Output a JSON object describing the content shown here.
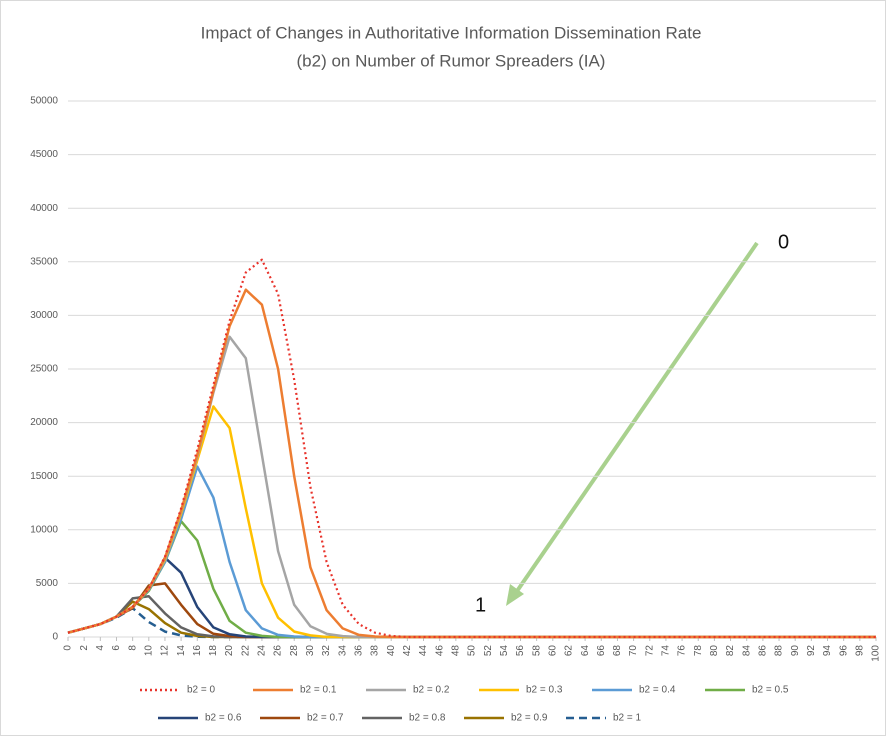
{
  "chart_data": {
    "type": "line",
    "title": [
      "Impact of Changes in Authoritative Information Dissemination Rate",
      "(b2) on Number of Rumor Spreaders (IA)"
    ],
    "x": [
      0,
      2,
      4,
      6,
      8,
      10,
      12,
      14,
      16,
      18,
      20,
      22,
      24,
      26,
      28,
      30,
      32,
      34,
      36,
      38,
      40,
      42,
      44,
      46,
      48,
      50,
      52,
      54,
      56,
      58,
      60,
      62,
      64,
      66,
      68,
      70,
      72,
      74,
      76,
      78,
      80,
      82,
      84,
      86,
      88,
      90,
      92,
      94,
      96,
      98,
      100
    ],
    "xlim": [
      0,
      100
    ],
    "xticks": [
      0,
      2,
      4,
      6,
      8,
      10,
      12,
      14,
      16,
      18,
      20,
      22,
      24,
      26,
      28,
      30,
      32,
      34,
      36,
      38,
      40,
      42,
      44,
      46,
      48,
      50,
      52,
      54,
      56,
      58,
      60,
      62,
      64,
      66,
      68,
      70,
      72,
      74,
      76,
      78,
      80,
      82,
      84,
      86,
      88,
      90,
      92,
      94,
      96,
      98,
      100
    ],
    "ylim": [
      0,
      50000
    ],
    "yticks": [
      0,
      5000,
      10000,
      15000,
      20000,
      25000,
      30000,
      35000,
      40000,
      45000,
      50000
    ],
    "grid": true,
    "legend": "bottom",
    "annotations": [
      "0",
      "1"
    ],
    "series": [
      {
        "name": "b2 = 0",
        "color": "#e8332b",
        "dash": "dotted",
        "values": [
          400,
          800,
          1200,
          1900,
          2800,
          4500,
          7500,
          12000,
          17500,
          23500,
          29500,
          34000,
          35200,
          32000,
          24000,
          14000,
          7000,
          3000,
          1200,
          400,
          100,
          0,
          0,
          0,
          0,
          0,
          0,
          0,
          0,
          0,
          0,
          0,
          0,
          0,
          0,
          0,
          0,
          0,
          0,
          0,
          0,
          0,
          0,
          0,
          0,
          0,
          0,
          0,
          0,
          0,
          0
        ]
      },
      {
        "name": "b2 = 0.1",
        "color": "#ed7d31",
        "dash": "solid",
        "values": [
          400,
          800,
          1200,
          1900,
          2800,
          4500,
          7400,
          11800,
          17000,
          23000,
          29000,
          32400,
          31000,
          25000,
          15000,
          6500,
          2500,
          800,
          200,
          50,
          0,
          0,
          0,
          0,
          0,
          0,
          0,
          0,
          0,
          0,
          0,
          0,
          0,
          0,
          0,
          0,
          0,
          0,
          0,
          0,
          0,
          0,
          0,
          0,
          0,
          0,
          0,
          0,
          0,
          0,
          0
        ]
      },
      {
        "name": "b2 = 0.2",
        "color": "#a5a5a5",
        "dash": "solid",
        "values": [
          400,
          800,
          1200,
          1900,
          2800,
          4500,
          7300,
          11700,
          16800,
          22800,
          28000,
          26000,
          17000,
          8000,
          3000,
          1000,
          300,
          80,
          0,
          0,
          0,
          0,
          0,
          0,
          0,
          0,
          0,
          0,
          0,
          0,
          0,
          0,
          0,
          0,
          0,
          0,
          0,
          0,
          0,
          0,
          0,
          0,
          0,
          0,
          0,
          0,
          0,
          0,
          0,
          0,
          0
        ]
      },
      {
        "name": "b2 = 0.3",
        "color": "#ffc000",
        "dash": "solid",
        "values": [
          400,
          800,
          1200,
          1900,
          2800,
          4500,
          7200,
          11500,
          16500,
          21500,
          19500,
          12000,
          5000,
          1800,
          500,
          150,
          0,
          0,
          0,
          0,
          0,
          0,
          0,
          0,
          0,
          0,
          0,
          0,
          0,
          0,
          0,
          0,
          0,
          0,
          0,
          0,
          0,
          0,
          0,
          0,
          0,
          0,
          0,
          0,
          0,
          0,
          0,
          0,
          0,
          0,
          0
        ]
      },
      {
        "name": "b2 = 0.4",
        "color": "#5b9bd5",
        "dash": "solid",
        "values": [
          400,
          800,
          1200,
          1900,
          2800,
          4400,
          7000,
          11000,
          15900,
          13000,
          7000,
          2500,
          800,
          200,
          50,
          0,
          0,
          0,
          0,
          0,
          0,
          0,
          0,
          0,
          0,
          0,
          0,
          0,
          0,
          0,
          0,
          0,
          0,
          0,
          0,
          0,
          0,
          0,
          0,
          0,
          0,
          0,
          0,
          0,
          0,
          0,
          0,
          0,
          0,
          0,
          0
        ]
      },
      {
        "name": "b2 = 0.5",
        "color": "#70ad47",
        "dash": "solid",
        "values": [
          400,
          800,
          1200,
          1900,
          2800,
          4300,
          7000,
          10800,
          9000,
          4500,
          1500,
          400,
          100,
          0,
          0,
          0,
          0,
          0,
          0,
          0,
          0,
          0,
          0,
          0,
          0,
          0,
          0,
          0,
          0,
          0,
          0,
          0,
          0,
          0,
          0,
          0,
          0,
          0,
          0,
          0,
          0,
          0,
          0,
          0,
          0,
          0,
          0,
          0,
          0,
          0,
          0
        ]
      },
      {
        "name": "b2 = 0.6",
        "color": "#264478",
        "dash": "solid",
        "values": [
          400,
          800,
          1200,
          1900,
          2800,
          4500,
          7400,
          6000,
          2800,
          900,
          250,
          50,
          0,
          0,
          0,
          0,
          0,
          0,
          0,
          0,
          0,
          0,
          0,
          0,
          0,
          0,
          0,
          0,
          0,
          0,
          0,
          0,
          0,
          0,
          0,
          0,
          0,
          0,
          0,
          0,
          0,
          0,
          0,
          0,
          0,
          0,
          0,
          0,
          0,
          0,
          0
        ]
      },
      {
        "name": "b2 = 0.7",
        "color": "#9e480e",
        "dash": "solid",
        "values": [
          400,
          800,
          1200,
          1900,
          2700,
          4800,
          5000,
          3000,
          1200,
          300,
          80,
          0,
          0,
          0,
          0,
          0,
          0,
          0,
          0,
          0,
          0,
          0,
          0,
          0,
          0,
          0,
          0,
          0,
          0,
          0,
          0,
          0,
          0,
          0,
          0,
          0,
          0,
          0,
          0,
          0,
          0,
          0,
          0,
          0,
          0,
          0,
          0,
          0,
          0,
          0,
          0
        ]
      },
      {
        "name": "b2 = 0.8",
        "color": "#636363",
        "dash": "solid",
        "values": [
          400,
          800,
          1200,
          1900,
          3600,
          3800,
          2200,
          900,
          250,
          60,
          0,
          0,
          0,
          0,
          0,
          0,
          0,
          0,
          0,
          0,
          0,
          0,
          0,
          0,
          0,
          0,
          0,
          0,
          0,
          0,
          0,
          0,
          0,
          0,
          0,
          0,
          0,
          0,
          0,
          0,
          0,
          0,
          0,
          0,
          0,
          0,
          0,
          0,
          0,
          0,
          0
        ]
      },
      {
        "name": "b2 = 0.9",
        "color": "#997300",
        "dash": "solid",
        "values": [
          400,
          800,
          1200,
          1900,
          3300,
          2600,
          1300,
          400,
          100,
          0,
          0,
          0,
          0,
          0,
          0,
          0,
          0,
          0,
          0,
          0,
          0,
          0,
          0,
          0,
          0,
          0,
          0,
          0,
          0,
          0,
          0,
          0,
          0,
          0,
          0,
          0,
          0,
          0,
          0,
          0,
          0,
          0,
          0,
          0,
          0,
          0,
          0,
          0,
          0,
          0,
          0
        ]
      },
      {
        "name": "b2 = 1",
        "color": "#255e91",
        "dash": "dashed",
        "values": [
          400,
          800,
          1200,
          1800,
          2700,
          1400,
          500,
          150,
          30,
          0,
          0,
          0,
          0,
          0,
          0,
          0,
          0,
          0,
          0,
          0,
          0,
          0,
          0,
          0,
          0,
          0,
          0,
          0,
          0,
          0,
          0,
          0,
          0,
          0,
          0,
          0,
          0,
          0,
          0,
          0,
          0,
          0,
          0,
          0,
          0,
          0,
          0,
          0,
          0,
          0,
          0
        ]
      }
    ]
  }
}
